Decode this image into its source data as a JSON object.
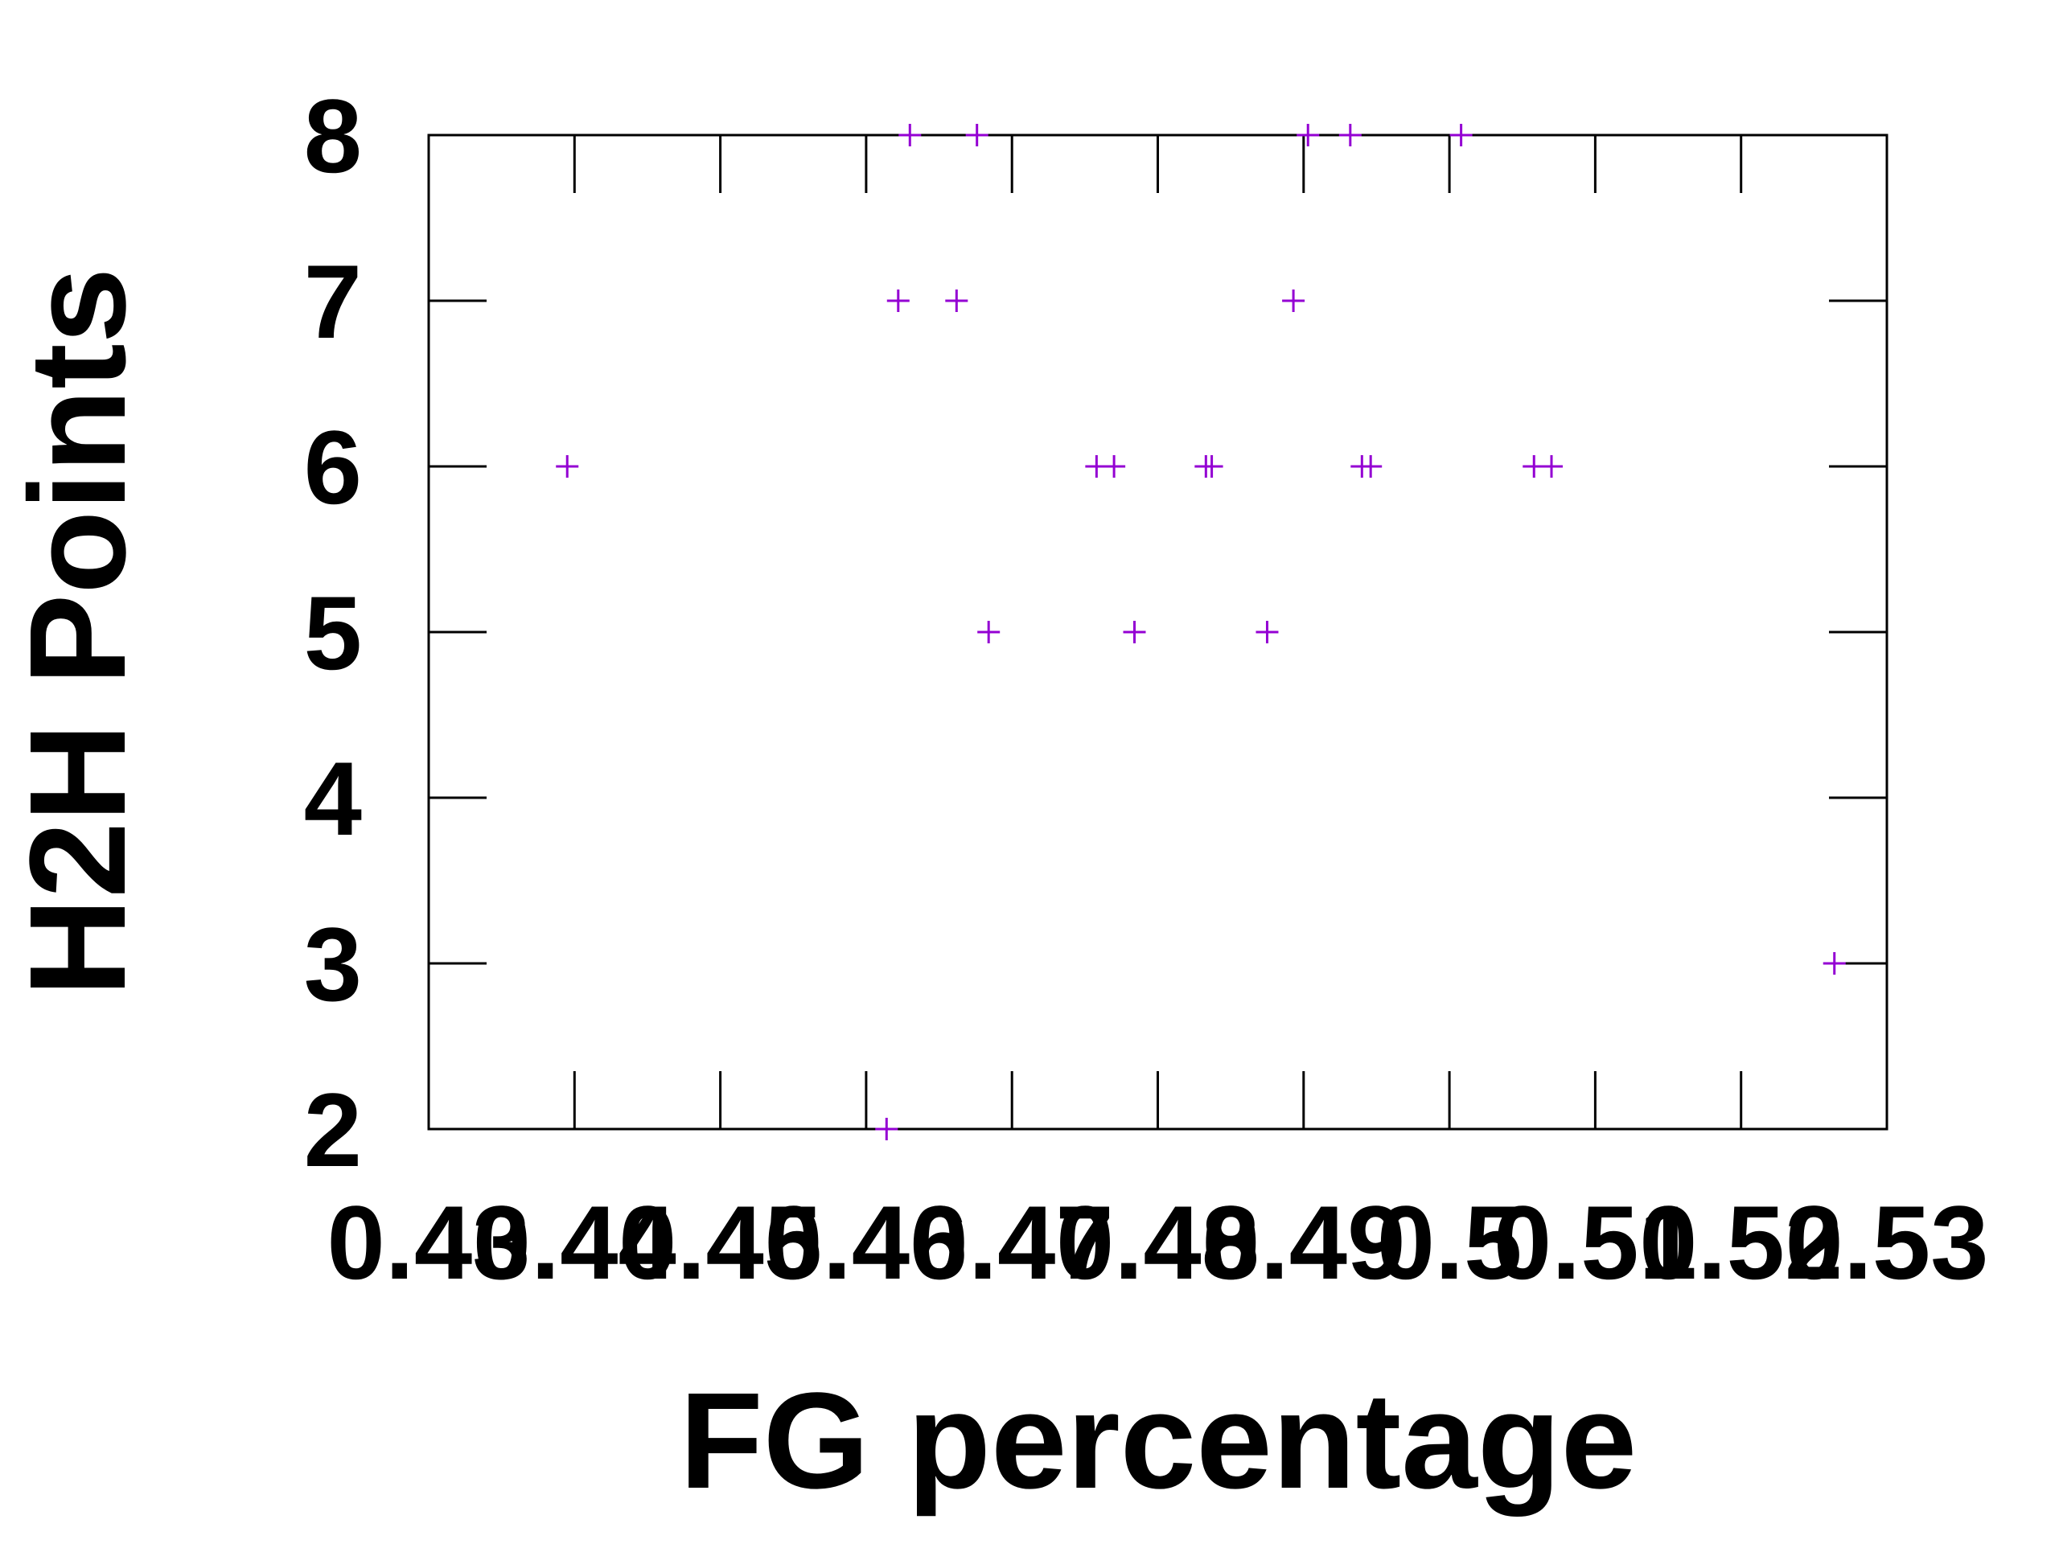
{
  "chart_data": {
    "type": "scatter",
    "title": "",
    "xlabel": "FG percentage",
    "ylabel": "H2H Points",
    "xlim": [
      0.43,
      0.53
    ],
    "ylim": [
      2,
      8
    ],
    "x_ticks": [
      "0.43",
      "0.44",
      "0.45",
      "0.46",
      "0.47",
      "0.48",
      "0.49",
      "0.5",
      "0.51",
      "0.52",
      "0.53"
    ],
    "y_ticks": [
      "2",
      "3",
      "4",
      "5",
      "6",
      "7",
      "8"
    ],
    "grid": false,
    "legend": "none",
    "marker": "plus",
    "color": "#9400d3",
    "series": [
      {
        "points": [
          {
            "x": 0.4395,
            "y": 6
          },
          {
            "x": 0.4614,
            "y": 2
          },
          {
            "x": 0.4622,
            "y": 7
          },
          {
            "x": 0.463,
            "y": 8
          },
          {
            "x": 0.4662,
            "y": 7
          },
          {
            "x": 0.4676,
            "y": 8
          },
          {
            "x": 0.4684,
            "y": 5
          },
          {
            "x": 0.4758,
            "y": 6
          },
          {
            "x": 0.477,
            "y": 6
          },
          {
            "x": 0.4784,
            "y": 5
          },
          {
            "x": 0.4833,
            "y": 6
          },
          {
            "x": 0.4837,
            "y": 6
          },
          {
            "x": 0.4875,
            "y": 5
          },
          {
            "x": 0.4893,
            "y": 7
          },
          {
            "x": 0.4903,
            "y": 8
          },
          {
            "x": 0.4932,
            "y": 8
          },
          {
            "x": 0.494,
            "y": 6
          },
          {
            "x": 0.4946,
            "y": 6
          },
          {
            "x": 0.5008,
            "y": 8
          },
          {
            "x": 0.5058,
            "y": 6
          },
          {
            "x": 0.507,
            "y": 6
          },
          {
            "x": 0.5264,
            "y": 3
          }
        ]
      }
    ]
  }
}
